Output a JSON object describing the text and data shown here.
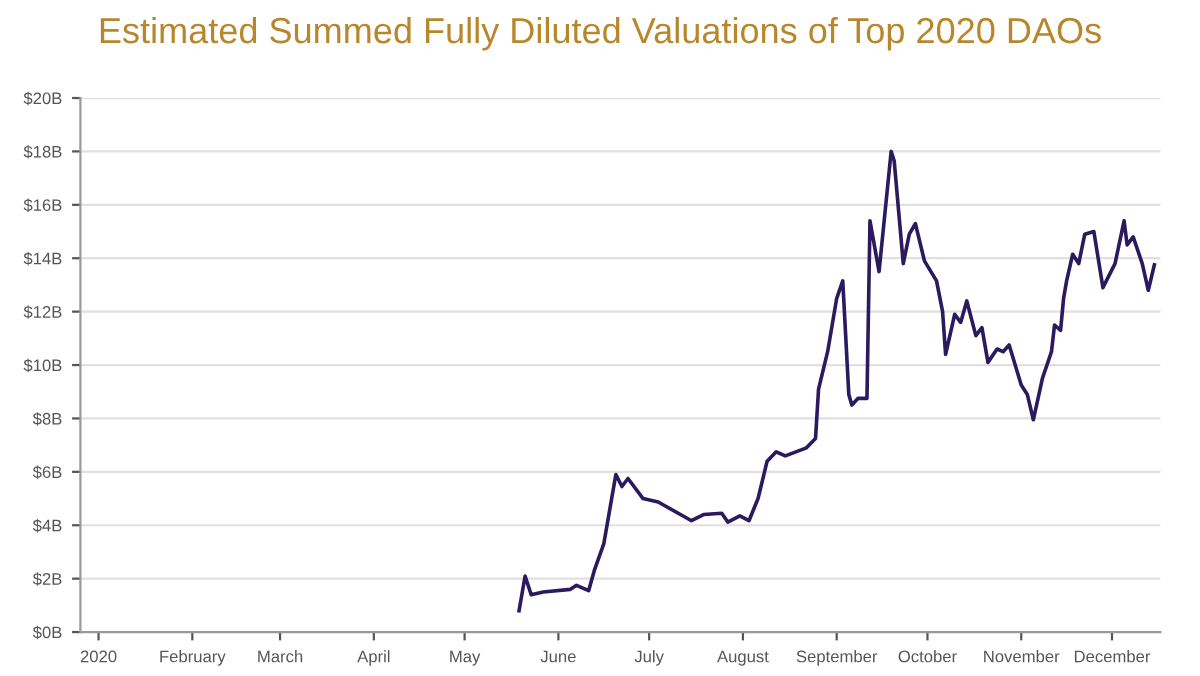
{
  "chart_data": {
    "type": "line",
    "title": "Estimated Summed Fully Diluted Valuations of Top 2020 DAOs",
    "series": [
      {
        "color": "#2a1a5e",
        "x": [
          "2020-05-19",
          "2020-05-21",
          "2020-05-23",
          "2020-05-27",
          "2020-06-05",
          "2020-06-07",
          "2020-06-11",
          "2020-06-13",
          "2020-06-16",
          "2020-06-20",
          "2020-06-22",
          "2020-06-24",
          "2020-06-29",
          "2020-07-04",
          "2020-07-15",
          "2020-07-19",
          "2020-07-25",
          "2020-07-27",
          "2020-07-31",
          "2020-08-03",
          "2020-08-06",
          "2020-08-09",
          "2020-08-12",
          "2020-08-15",
          "2020-08-22",
          "2020-08-25",
          "2020-08-26",
          "2020-08-29",
          "2020-09-01",
          "2020-09-03",
          "2020-09-05",
          "2020-09-06",
          "2020-09-08",
          "2020-09-11",
          "2020-09-12",
          "2020-09-15",
          "2020-09-19",
          "2020-09-20",
          "2020-09-23",
          "2020-09-25",
          "2020-09-27",
          "2020-09-30",
          "2020-10-04",
          "2020-10-06",
          "2020-10-07",
          "2020-10-10",
          "2020-10-12",
          "2020-10-14",
          "2020-10-17",
          "2020-10-19",
          "2020-10-21",
          "2020-10-24",
          "2020-10-26",
          "2020-10-28",
          "2020-11-01",
          "2020-11-03",
          "2020-11-05",
          "2020-11-08",
          "2020-11-11",
          "2020-11-12",
          "2020-11-14",
          "2020-11-15",
          "2020-11-16",
          "2020-11-18",
          "2020-11-20",
          "2020-11-22",
          "2020-11-25",
          "2020-11-28",
          "2020-12-02",
          "2020-12-05",
          "2020-12-06",
          "2020-12-08",
          "2020-12-11",
          "2020-12-13",
          "2020-12-15"
        ],
        "values": [
          0.8,
          2.1,
          1.4,
          1.5,
          1.6,
          1.75,
          1.55,
          2.35,
          3.3,
          5.9,
          5.45,
          5.75,
          5.0,
          4.87,
          4.17,
          4.4,
          4.45,
          4.12,
          4.35,
          4.17,
          5.0,
          6.4,
          6.75,
          6.6,
          6.9,
          7.25,
          9.1,
          10.5,
          12.5,
          13.15,
          8.9,
          8.5,
          8.75,
          8.75,
          15.4,
          13.5,
          18.0,
          17.65,
          13.8,
          14.9,
          15.3,
          13.9,
          13.15,
          12.0,
          10.4,
          11.9,
          11.6,
          12.4,
          11.1,
          11.4,
          10.1,
          10.6,
          10.5,
          10.75,
          9.25,
          8.9,
          7.95,
          9.5,
          10.5,
          11.5,
          11.3,
          12.5,
          13.15,
          14.15,
          13.8,
          14.9,
          15.0,
          12.9,
          13.8,
          15.4,
          14.5,
          14.8,
          13.8,
          12.8,
          13.75
        ]
      }
    ],
    "xlim": [
      "2019-12-26",
      "2020-12-17"
    ],
    "xticks": [
      {
        "value": "2020-01-01",
        "label": "2020"
      },
      {
        "value": "2020-02-01",
        "label": "February"
      },
      {
        "value": "2020-03-01",
        "label": "March"
      },
      {
        "value": "2020-04-01",
        "label": "April"
      },
      {
        "value": "2020-05-01",
        "label": "May"
      },
      {
        "value": "2020-06-01",
        "label": "June"
      },
      {
        "value": "2020-07-01",
        "label": "July"
      },
      {
        "value": "2020-08-01",
        "label": "August"
      },
      {
        "value": "2020-09-01",
        "label": "September"
      },
      {
        "value": "2020-10-01",
        "label": "October"
      },
      {
        "value": "2020-11-01",
        "label": "November"
      },
      {
        "value": "2020-12-01",
        "label": "December"
      }
    ],
    "ylim": [
      0,
      20
    ],
    "yticks": [
      {
        "value": 0,
        "label": "$0B"
      },
      {
        "value": 2,
        "label": "$2B"
      },
      {
        "value": 4,
        "label": "$4B"
      },
      {
        "value": 6,
        "label": "$6B"
      },
      {
        "value": 8,
        "label": "$8B"
      },
      {
        "value": 10,
        "label": "$10B"
      },
      {
        "value": 12,
        "label": "$12B"
      },
      {
        "value": 14,
        "label": "$14B"
      },
      {
        "value": 16,
        "label": "$16B"
      },
      {
        "value": 18,
        "label": "$18B"
      },
      {
        "value": 20,
        "label": "$20B"
      }
    ],
    "grid": "y",
    "marker": "none",
    "line_style": "solid"
  }
}
